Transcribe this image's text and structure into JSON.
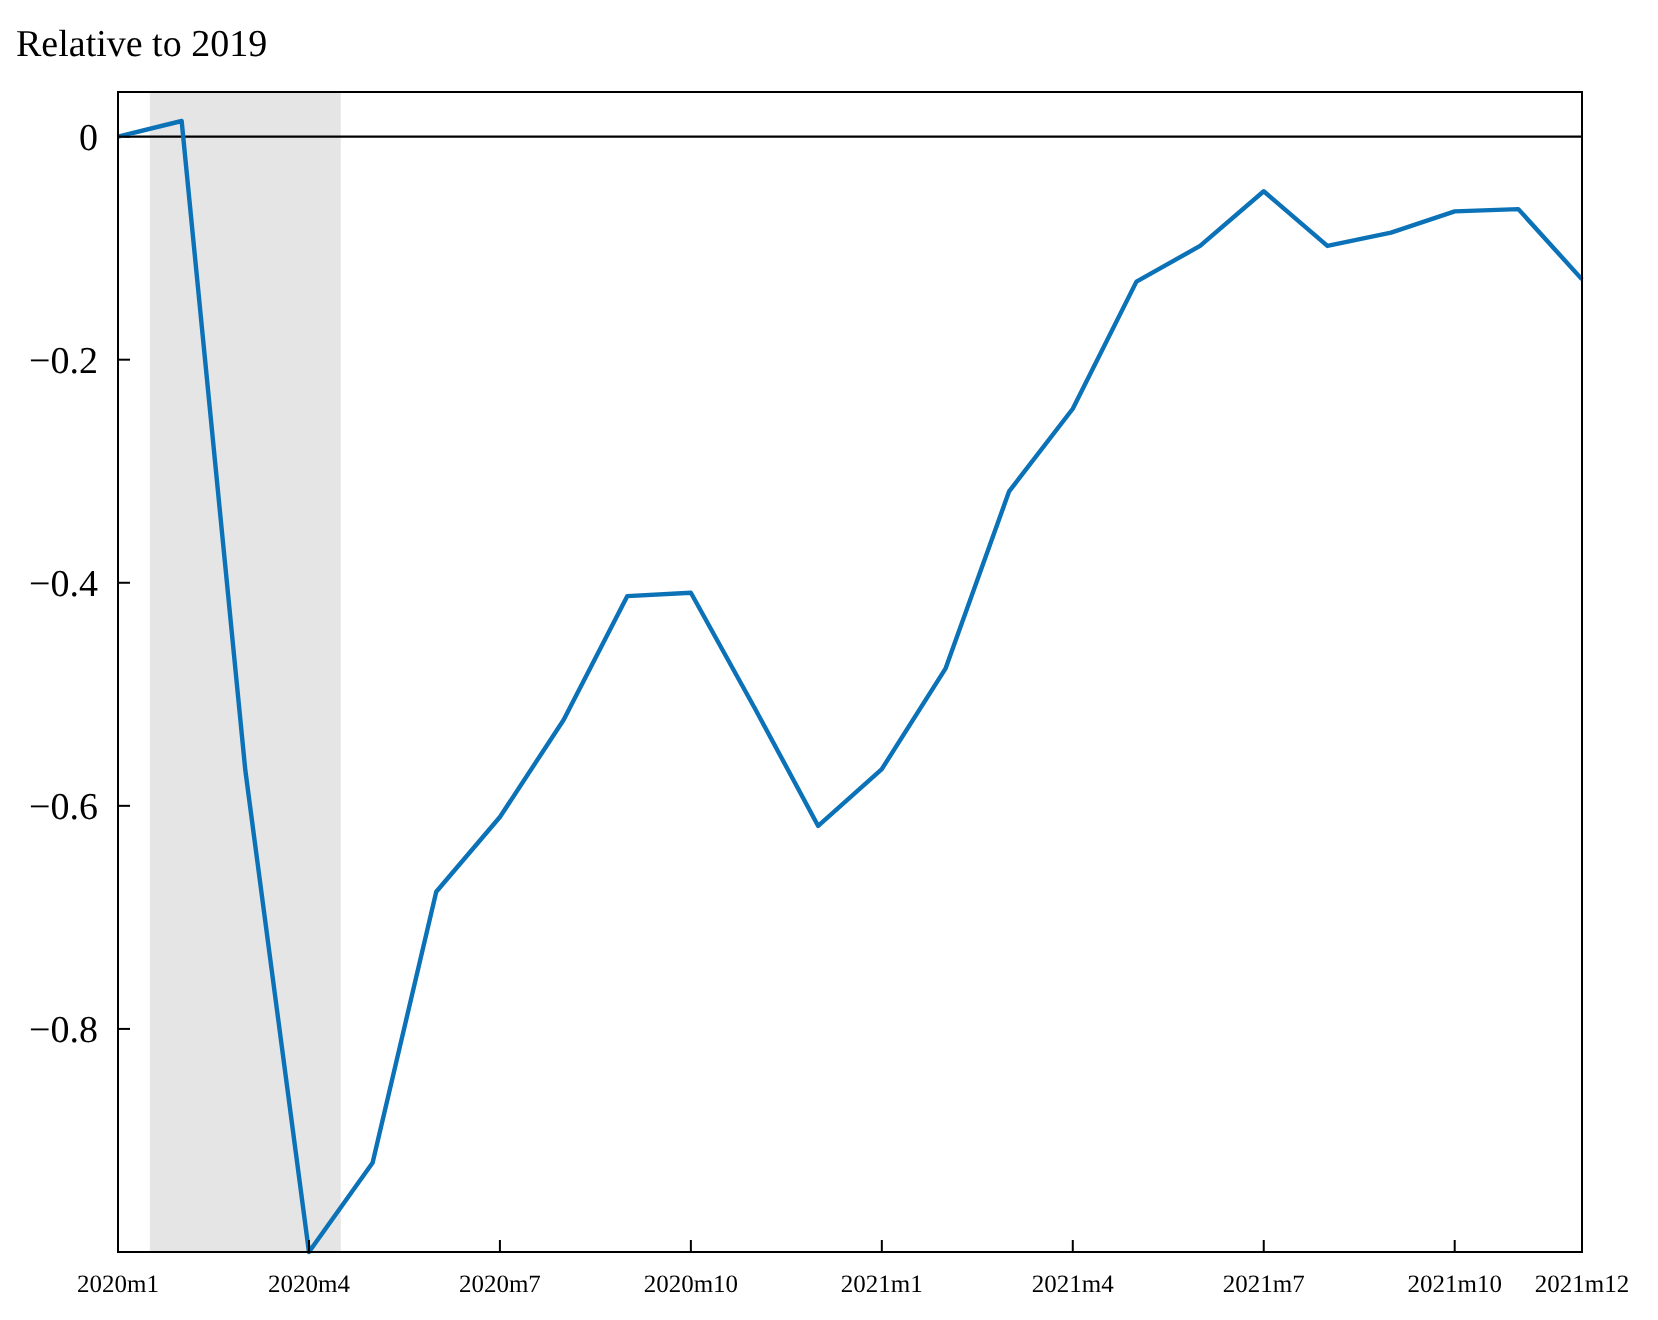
{
  "chart_data": {
    "type": "line",
    "ylabel": "Relative to 2019",
    "categories": [
      "2020m1",
      null,
      null,
      "2020m4",
      null,
      null,
      "2020m7",
      null,
      null,
      "2020m10",
      null,
      null,
      "2021m1",
      null,
      null,
      "2021m4",
      null,
      null,
      "2021m7",
      null,
      null,
      "2021m10",
      null,
      "2021m12"
    ],
    "series": [
      {
        "color": "#0b72b8",
        "values": [
          0,
          0.014,
          -0.568,
          -1.0,
          -0.92,
          -0.677,
          -0.61,
          -0.523,
          -0.412,
          -0.409,
          -0.512,
          -0.618,
          -0.567,
          -0.477,
          -0.318,
          -0.244,
          -0.13,
          -0.098,
          -0.049,
          -0.098,
          -0.086,
          -0.067,
          -0.065,
          -0.128
        ]
      }
    ],
    "ylim": [
      -1,
      0.04
    ],
    "yticks": [
      0,
      {
        "value": -0.2,
        "label": "−0.2"
      },
      {
        "value": -0.4,
        "label": "−0.4"
      },
      {
        "value": -0.6,
        "label": "−0.6"
      },
      {
        "value": -0.8,
        "label": "−0.8"
      }
    ],
    "ref_lines": [
      {
        "axis": "y",
        "value": 0,
        "color": "#000000"
      }
    ],
    "grid": false,
    "marker": "none",
    "line_style": "solid"
  }
}
